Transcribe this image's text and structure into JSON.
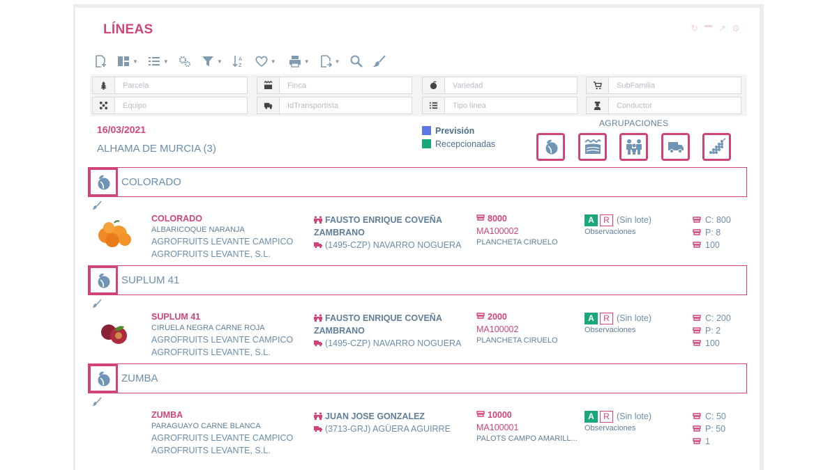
{
  "header": {
    "title": "LÍNEAS"
  },
  "window_controls": [
    "refresh-icon",
    "minimize-icon",
    "expand-icon",
    "settings-icon"
  ],
  "toolbar": [
    "new-document-icon",
    "layout-icon",
    "list-icon",
    "settings-icon",
    "filter-icon",
    "sort-az-icon",
    "favorite-icon",
    "print-icon",
    "export-icon",
    "search-icon",
    "brush-icon"
  ],
  "filters": {
    "parcela": "Parcela",
    "finca": "Finca",
    "variedad": "Variedad",
    "subfamilia": "SubFamilia",
    "equipo": "Equipo",
    "transportista": "IdTransportista",
    "tipo_linea": "Tipo línea",
    "conductor": "Conductor"
  },
  "summary": {
    "date": "16/03/2021",
    "location": "ALHAMA DE MURCIA (3)"
  },
  "legend": [
    {
      "label": "Previsión",
      "color": "#5a78e8"
    },
    {
      "label": "Recepcionadas",
      "color": "#15a878"
    }
  ],
  "agrupaciones": {
    "label": "AGRUPACIONES",
    "buttons": [
      "variety-icon",
      "field-icon",
      "team-icon",
      "truck-icon",
      "grape-icon"
    ]
  },
  "groups": [
    {
      "name": "COLORADO",
      "line": {
        "variety": "COLORADO",
        "product": "ALBARICOQUE NARANJA",
        "farm": "AGROFRUITS LEVANTE CAMPICO",
        "company": "AGROFRUITS LEVANTE, S.L.",
        "person1": "FAUSTO ENRIQUE COVEÑA",
        "person2": "ZAMBRANO",
        "truck": "(1495-CZP) NAVARRO NOGUERA",
        "qty": "8000",
        "code": "MA100002",
        "container": "PLANCHETA CIRUELO",
        "badge_a": "A",
        "badge_r": "R",
        "lote": "(Sin lote)",
        "obs": "Observaciones",
        "c": "C: 800",
        "p": "P: 8",
        "n": "100"
      }
    },
    {
      "name": "SUPLUM 41",
      "line": {
        "variety": "SUPLUM 41",
        "product": "CIRUELA NEGRA CARNE ROJA",
        "farm": "AGROFRUITS LEVANTE CAMPICO",
        "company": "AGROFRUITS LEVANTE, S.L.",
        "person1": "FAUSTO ENRIQUE COVEÑA",
        "person2": "ZAMBRANO",
        "truck": "(1495-CZP) NAVARRO NOGUERA",
        "qty": "2000",
        "code": "MA100002",
        "container": "PLANCHETA CIRUELO",
        "badge_a": "A",
        "badge_r": "R",
        "lote": "(Sin lote)",
        "obs": "Observaciones",
        "c": "C: 200",
        "p": "P: 2",
        "n": "100"
      }
    },
    {
      "name": "ZUMBA",
      "line": {
        "variety": "ZUMBA",
        "product": "PARAGUAYO CARNE BLANCA",
        "farm": "AGROFRUITS LEVANTE CAMPICO",
        "company": "AGROFRUITS LEVANTE, S.L.",
        "person1": "JUAN JOSE GONZALEZ",
        "person2": "",
        "truck": "(3713-GRJ) AGÜERA AGUIRRE",
        "qty": "10000",
        "code": "MA100001",
        "container": "PALOTS CAMPO AMARILL...",
        "badge_a": "A",
        "badge_r": "R",
        "lote": "(Sin lote)",
        "obs": "Observaciones",
        "c": "C: 50",
        "p": "P: 50",
        "n": "1"
      }
    }
  ]
}
